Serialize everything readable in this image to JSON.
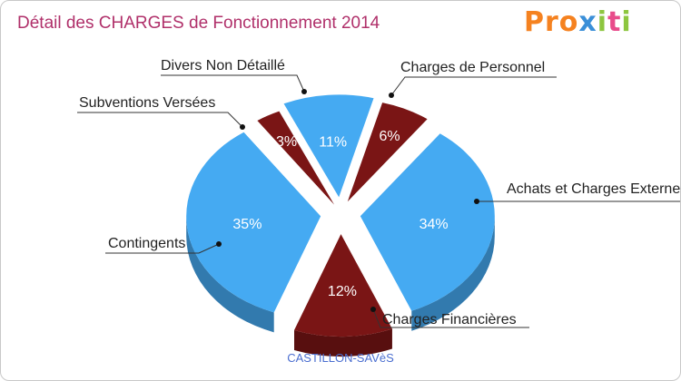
{
  "chart_data": {
    "type": "pie",
    "title": "Détail des CHARGES de Fonctionnement 2014",
    "subtitle": "CASTILLON-SAVèS",
    "slices": [
      {
        "name": "Charges de Personnel",
        "value": 6,
        "label": "6%",
        "color": "#7a1515"
      },
      {
        "name": "Achats et Charges Externes",
        "value": 34,
        "label": "34%",
        "color": "#45aaf2"
      },
      {
        "name": "Charges Financières",
        "value": 12,
        "label": "12%",
        "color": "#7a1515"
      },
      {
        "name": "Contingents",
        "value": 35,
        "label": "35%",
        "color": "#45aaf2"
      },
      {
        "name": "Subventions Versées",
        "value": 3,
        "label": "3%",
        "color": "#7a1515"
      },
      {
        "name": "Divers Non Détaillé",
        "value": 11,
        "label": "11%",
        "color": "#45aaf2"
      }
    ]
  },
  "brand": {
    "letters": [
      "P",
      "r",
      "o",
      "x",
      "i",
      "t",
      "i"
    ],
    "colors": [
      "#f58220",
      "#f58220",
      "#f58220",
      "#3a8fd8",
      "#8dc63f",
      "#e84c8b",
      "#8dc63f"
    ]
  },
  "colors": {
    "dark_slice": "#7a1515",
    "light_slice": "#45aaf2",
    "title": "#b0306a"
  }
}
